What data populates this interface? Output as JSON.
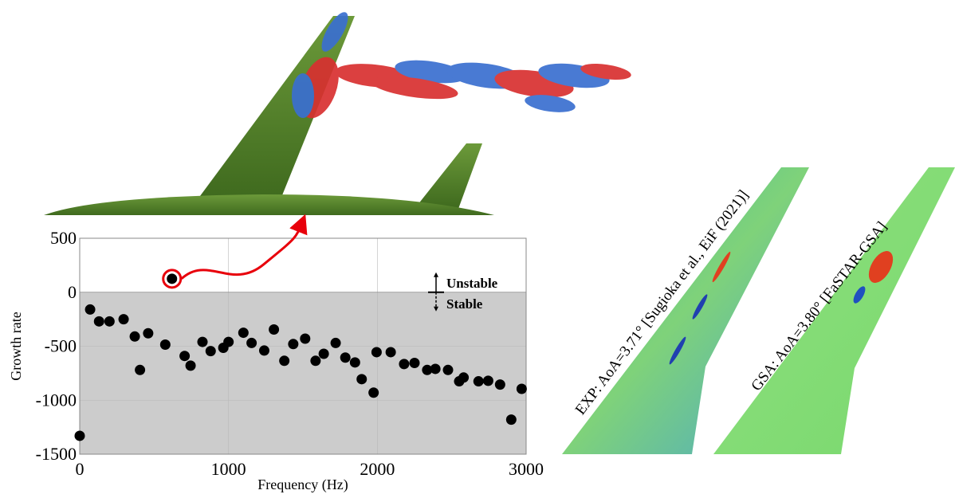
{
  "chart_data": {
    "type": "scatter",
    "x_label": "Frequency (Hz)",
    "y_label": "Growth rate",
    "x": [
      0,
      70,
      130,
      200,
      295,
      370,
      405,
      460,
      575,
      620,
      705,
      745,
      825,
      880,
      965,
      1000,
      1100,
      1155,
      1240,
      1305,
      1375,
      1435,
      1515,
      1585,
      1640,
      1720,
      1785,
      1850,
      1895,
      1975,
      1995,
      2090,
      2180,
      2250,
      2335,
      2390,
      2475,
      2550,
      2580,
      2680,
      2745,
      2825,
      2900,
      2970
    ],
    "values": [
      -1330,
      -160,
      -270,
      -270,
      -250,
      -410,
      -720,
      -380,
      -485,
      125,
      -590,
      -680,
      -460,
      -545,
      -515,
      -460,
      -375,
      -470,
      -540,
      -345,
      -635,
      -480,
      -430,
      -635,
      -570,
      -470,
      -605,
      -650,
      -805,
      -930,
      -555,
      -555,
      -665,
      -655,
      -720,
      -710,
      -720,
      -825,
      -790,
      -825,
      -820,
      -855,
      -1180,
      -895
    ],
    "color": "#000000",
    "xlim": [
      0,
      3000
    ],
    "ylim": [
      -1500,
      500
    ],
    "xticks": [
      0,
      1000,
      2000,
      3000
    ],
    "yticks": [
      500,
      0,
      -500,
      -1000,
      -1500
    ],
    "grid": true,
    "annotations": {
      "unstable": "Unstable",
      "stable": "Stable"
    }
  },
  "panels": {
    "experiment": {
      "label": "EXP: AoA=3.71° [Sugioka et al., EiF (2021)]"
    },
    "simulation": {
      "label": "GSA: AoA=3.80° [FaSTAR-GSA]"
    }
  }
}
